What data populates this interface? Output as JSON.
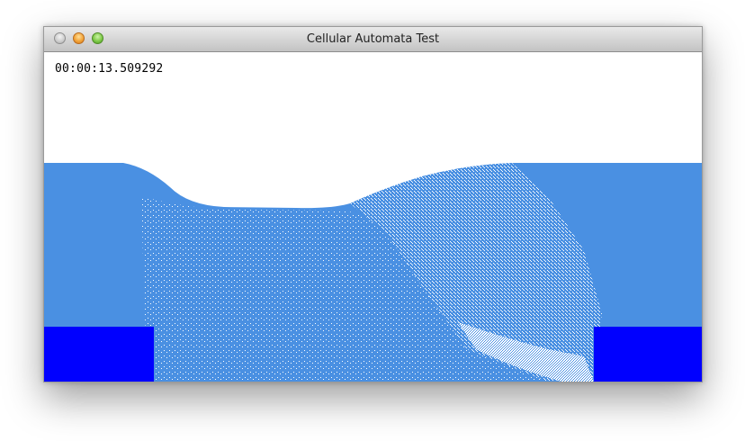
{
  "window": {
    "title": "Cellular Automata Test"
  },
  "simulation": {
    "elapsed_time": "00:00:13.509292",
    "colors": {
      "water": "#4a90e2",
      "solid_block": "#0000ff",
      "background": "#ffffff"
    }
  }
}
